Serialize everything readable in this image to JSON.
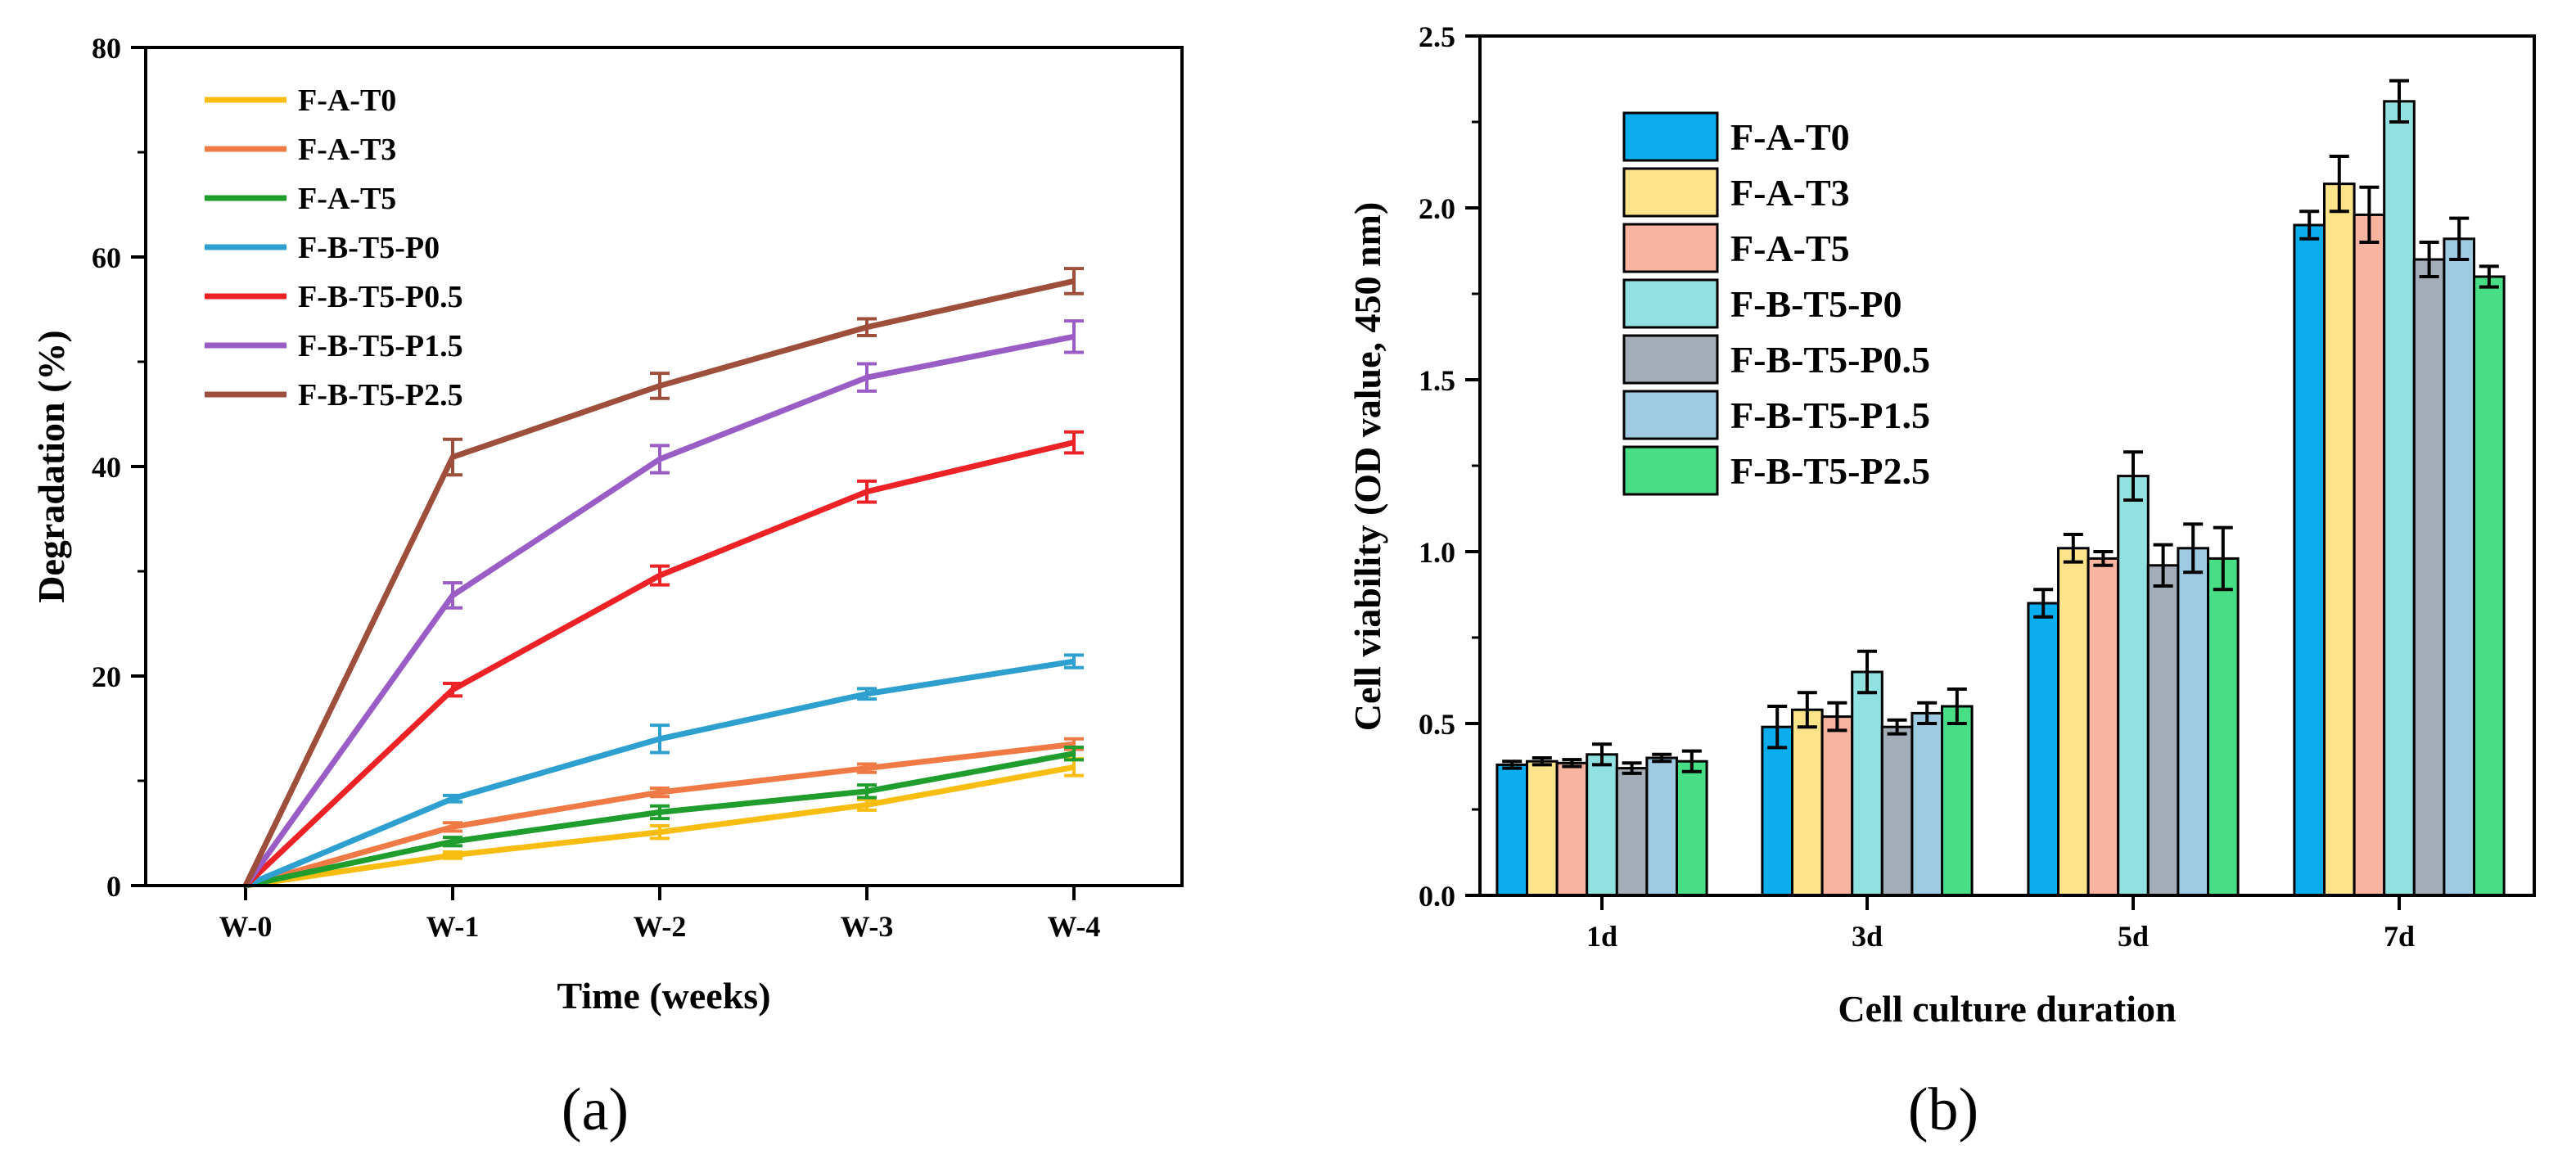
{
  "chart_data": [
    {
      "type": "line",
      "panel_label": "(a)",
      "xlabel": "Time (weeks)",
      "ylabel": "Degradation (%)",
      "categories": [
        "W-0",
        "W-1",
        "W-2",
        "W-3",
        "W-4"
      ],
      "ylim": [
        0,
        80
      ],
      "yticks": [
        0,
        20,
        40,
        60,
        80
      ],
      "legend_position": "top-left",
      "series": [
        {
          "name": "F-A-T0",
          "color": "#f7bd10",
          "values": [
            0,
            2.9,
            5.1,
            7.7,
            11.3
          ],
          "errors": [
            0,
            0.3,
            0.6,
            0.5,
            0.8
          ]
        },
        {
          "name": "F-A-T3",
          "color": "#f07a45",
          "values": [
            0,
            5.6,
            8.9,
            11.2,
            13.5
          ],
          "errors": [
            0,
            0.4,
            0.4,
            0.4,
            0.5
          ]
        },
        {
          "name": "F-A-T5",
          "color": "#1f9e2e",
          "values": [
            0,
            4.2,
            7.0,
            9.0,
            12.6
          ],
          "errors": [
            0,
            0.4,
            0.6,
            0.6,
            0.6
          ]
        },
        {
          "name": "F-B-T5-P0",
          "color": "#2ea0cf",
          "values": [
            0,
            8.3,
            14.0,
            18.3,
            21.4
          ],
          "errors": [
            0,
            0.3,
            1.3,
            0.5,
            0.6
          ]
        },
        {
          "name": "F-B-T5-P0.5",
          "color": "#ec2226",
          "values": [
            0,
            18.7,
            29.6,
            37.6,
            42.3
          ],
          "errors": [
            0,
            0.6,
            0.9,
            1.0,
            1.0
          ]
        },
        {
          "name": "F-B-T5-P1.5",
          "color": "#9a5cc5",
          "values": [
            0,
            27.7,
            40.7,
            48.5,
            52.4
          ],
          "errors": [
            0,
            1.2,
            1.3,
            1.3,
            1.5
          ]
        },
        {
          "name": "F-B-T5-P2.5",
          "color": "#9e4f3b",
          "values": [
            0,
            40.9,
            47.7,
            53.3,
            57.7
          ],
          "errors": [
            0,
            1.7,
            1.2,
            0.8,
            1.2
          ]
        }
      ]
    },
    {
      "type": "bar",
      "panel_label": "(b)",
      "xlabel": "Cell culture duration",
      "ylabel": "Cell viability (OD value, 450 nm)",
      "categories": [
        "1d",
        "3d",
        "5d",
        "7d"
      ],
      "ylim": [
        0,
        2.5
      ],
      "yticks": [
        0.0,
        0.5,
        1.0,
        1.5,
        2.0,
        2.5
      ],
      "ytick_labels": [
        "0.0",
        "0.5",
        "1.0",
        "1.5",
        "2.0",
        "2.5"
      ],
      "legend_position": "top-left",
      "series": [
        {
          "name": "F-A-T0",
          "color": "#0aaeef",
          "values": [
            0.38,
            0.49,
            0.85,
            1.95
          ],
          "errors": [
            0.01,
            0.06,
            0.04,
            0.04
          ]
        },
        {
          "name": "F-A-T3",
          "color": "#fde38a",
          "values": [
            0.39,
            0.54,
            1.01,
            2.07
          ],
          "errors": [
            0.01,
            0.05,
            0.04,
            0.08
          ]
        },
        {
          "name": "F-A-T5",
          "color": "#f9b4a1",
          "values": [
            0.385,
            0.52,
            0.98,
            1.98
          ],
          "errors": [
            0.01,
            0.04,
            0.02,
            0.08
          ]
        },
        {
          "name": "F-B-T5-P0",
          "color": "#91e1e1",
          "values": [
            0.41,
            0.65,
            1.22,
            2.31
          ],
          "errors": [
            0.03,
            0.06,
            0.07,
            0.06
          ]
        },
        {
          "name": "F-B-T5-P0.5",
          "color": "#a3adb7",
          "values": [
            0.37,
            0.49,
            0.96,
            1.85
          ],
          "errors": [
            0.015,
            0.02,
            0.06,
            0.05
          ]
        },
        {
          "name": "F-B-T5-P1.5",
          "color": "#9fcbe2",
          "values": [
            0.4,
            0.53,
            1.01,
            1.91
          ],
          "errors": [
            0.01,
            0.03,
            0.07,
            0.06
          ]
        },
        {
          "name": "F-B-T5-P2.5",
          "color": "#48de86",
          "values": [
            0.39,
            0.55,
            0.98,
            1.8
          ],
          "errors": [
            0.03,
            0.05,
            0.09,
            0.03
          ]
        }
      ]
    }
  ]
}
